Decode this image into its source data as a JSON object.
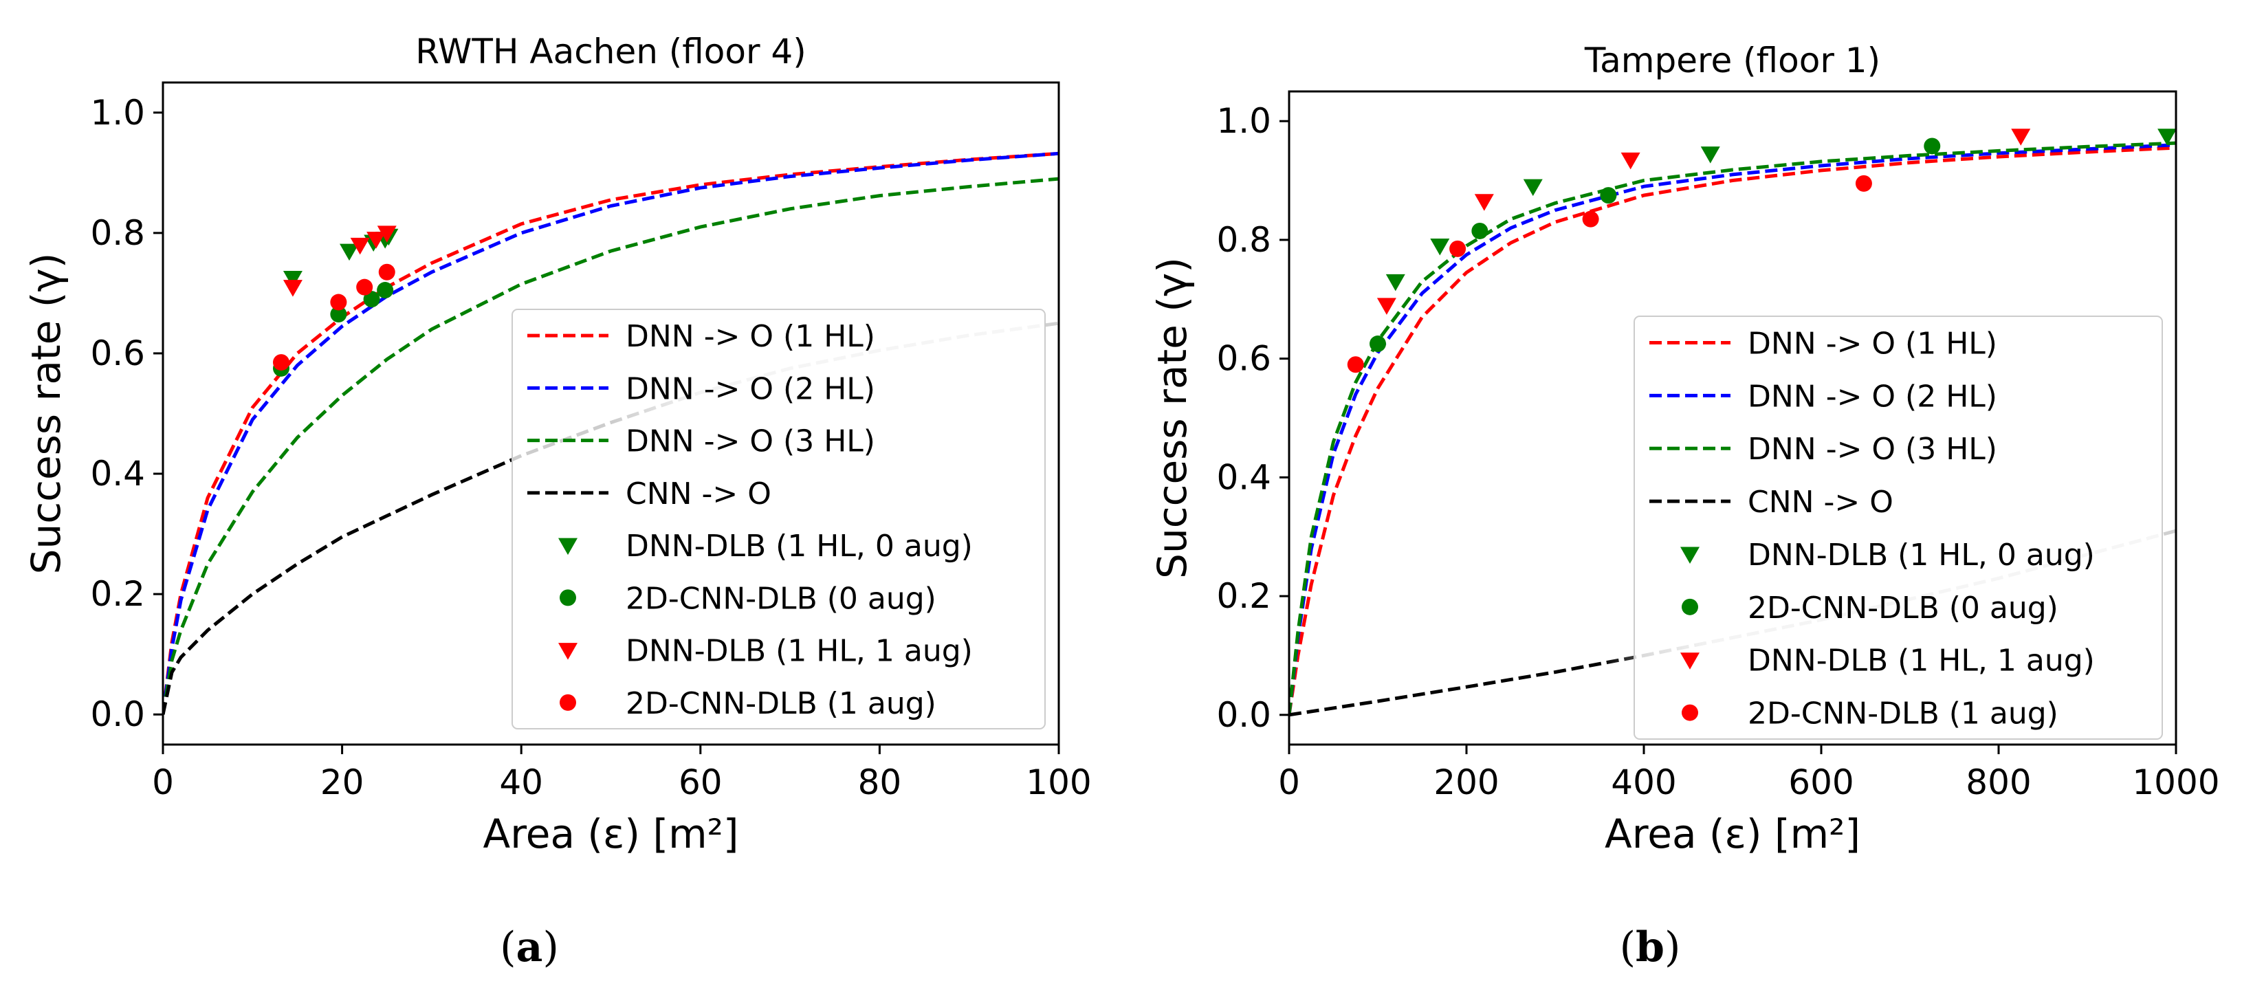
{
  "chart_data": [
    {
      "type": "line",
      "panel_label": "a",
      "title": "RWTH Aachen (floor 4)",
      "xlabel": "Area (ε) [m²]",
      "ylabel": "Success rate (γ)",
      "xlim": [
        0,
        100
      ],
      "ylim": [
        -0.05,
        1.05
      ],
      "xticks": [
        0,
        20,
        40,
        60,
        80,
        100
      ],
      "yticks": [
        0.0,
        0.2,
        0.4,
        0.6,
        0.8,
        1.0
      ],
      "xtick_labels": [
        "0",
        "20",
        "40",
        "60",
        "80",
        "100"
      ],
      "ytick_labels": [
        "0.0",
        "0.2",
        "0.4",
        "0.6",
        "0.8",
        "1.0"
      ],
      "grid": false,
      "legend_position": "center-right",
      "series": [
        {
          "name": "DNN -> O (1 HL)",
          "kind": "dashed-line",
          "color": "#ff0000",
          "x": [
            0,
            1,
            2,
            5,
            10,
            15,
            20,
            25,
            30,
            40,
            50,
            60,
            70,
            80,
            90,
            100
          ],
          "y": [
            0.0,
            0.12,
            0.2,
            0.36,
            0.51,
            0.6,
            0.66,
            0.71,
            0.75,
            0.815,
            0.855,
            0.88,
            0.897,
            0.91,
            0.922,
            0.932
          ]
        },
        {
          "name": "DNN -> O (2 HL)",
          "kind": "dashed-line",
          "color": "#0000ff",
          "x": [
            0,
            1,
            2,
            5,
            10,
            15,
            20,
            25,
            30,
            40,
            50,
            60,
            70,
            80,
            90,
            100
          ],
          "y": [
            0.0,
            0.11,
            0.19,
            0.34,
            0.49,
            0.58,
            0.645,
            0.695,
            0.735,
            0.8,
            0.845,
            0.875,
            0.894,
            0.908,
            0.921,
            0.932
          ]
        },
        {
          "name": "DNN -> O (3 HL)",
          "kind": "dashed-line",
          "color": "#008000",
          "x": [
            0,
            1,
            2,
            5,
            10,
            15,
            20,
            25,
            30,
            40,
            50,
            60,
            70,
            80,
            90,
            100
          ],
          "y": [
            0.0,
            0.09,
            0.14,
            0.25,
            0.37,
            0.46,
            0.53,
            0.59,
            0.64,
            0.715,
            0.77,
            0.81,
            0.84,
            0.862,
            0.877,
            0.89
          ]
        },
        {
          "name": "CNN -> O",
          "kind": "dashed-line",
          "color": "#000000",
          "fade_after_x": 50,
          "x": [
            0,
            1,
            2,
            5,
            10,
            15,
            20,
            25,
            30,
            40,
            50,
            60,
            70,
            80,
            90,
            100
          ],
          "y": [
            0.0,
            0.07,
            0.095,
            0.14,
            0.2,
            0.25,
            0.295,
            0.33,
            0.365,
            0.43,
            0.485,
            0.535,
            0.575,
            0.605,
            0.63,
            0.65
          ]
        },
        {
          "name": "DNN-DLB (1 HL, 0 aug)",
          "kind": "marker",
          "marker": "triangle-down",
          "color": "#008000",
          "x": [
            14.5,
            20.8,
            23.5,
            24.8,
            25.2
          ],
          "y": [
            0.725,
            0.77,
            0.785,
            0.79,
            0.795
          ]
        },
        {
          "name": "2D-CNN-DLB (0 aug)",
          "kind": "marker",
          "marker": "circle",
          "color": "#008000",
          "x": [
            13.2,
            19.6,
            23.3,
            24.8
          ],
          "y": [
            0.575,
            0.665,
            0.69,
            0.705
          ]
        },
        {
          "name": "DNN-DLB (1 HL, 1 aug)",
          "kind": "marker",
          "marker": "triangle-down",
          "color": "#ff0000",
          "x": [
            14.5,
            22.0,
            23.8,
            25.0
          ],
          "y": [
            0.71,
            0.78,
            0.79,
            0.8
          ]
        },
        {
          "name": "2D-CNN-DLB (1 aug)",
          "kind": "marker",
          "marker": "circle",
          "color": "#ff0000",
          "x": [
            13.2,
            19.6,
            22.5,
            25.0
          ],
          "y": [
            0.585,
            0.685,
            0.71,
            0.735
          ]
        }
      ]
    },
    {
      "type": "line",
      "panel_label": "b",
      "title": "Tampere (floor 1)",
      "xlabel": "Area (ε) [m²]",
      "ylabel": "Success rate (γ)",
      "xlim": [
        0,
        1000
      ],
      "ylim": [
        -0.05,
        1.05
      ],
      "xticks": [
        0,
        200,
        400,
        600,
        800,
        1000
      ],
      "yticks": [
        0.0,
        0.2,
        0.4,
        0.6,
        0.8,
        1.0
      ],
      "xtick_labels": [
        "0",
        "200",
        "400",
        "600",
        "800",
        "1000"
      ],
      "ytick_labels": [
        "0.0",
        "0.2",
        "0.4",
        "0.6",
        "0.8",
        "1.0"
      ],
      "grid": false,
      "legend_position": "center-right",
      "series": [
        {
          "name": "DNN -> O (1 HL)",
          "kind": "dashed-line",
          "color": "#ff0000",
          "x": [
            0,
            10,
            25,
            50,
            75,
            100,
            150,
            200,
            250,
            300,
            400,
            500,
            600,
            700,
            800,
            900,
            1000
          ],
          "y": [
            0.0,
            0.1,
            0.22,
            0.37,
            0.47,
            0.55,
            0.67,
            0.745,
            0.795,
            0.83,
            0.875,
            0.9,
            0.917,
            0.93,
            0.94,
            0.948,
            0.955
          ]
        },
        {
          "name": "DNN -> O (2 HL)",
          "kind": "dashed-line",
          "color": "#0000ff",
          "x": [
            0,
            10,
            25,
            50,
            75,
            100,
            150,
            200,
            250,
            300,
            400,
            500,
            600,
            700,
            800,
            900,
            1000
          ],
          "y": [
            0.0,
            0.13,
            0.28,
            0.44,
            0.54,
            0.61,
            0.71,
            0.775,
            0.82,
            0.85,
            0.89,
            0.91,
            0.925,
            0.937,
            0.946,
            0.953,
            0.96
          ]
        },
        {
          "name": "DNN -> O (3 HL)",
          "kind": "dashed-line",
          "color": "#008000",
          "x": [
            0,
            10,
            25,
            50,
            75,
            100,
            150,
            200,
            250,
            300,
            400,
            500,
            600,
            700,
            800,
            900,
            1000
          ],
          "y": [
            0.0,
            0.14,
            0.3,
            0.46,
            0.56,
            0.63,
            0.73,
            0.79,
            0.835,
            0.862,
            0.9,
            0.918,
            0.932,
            0.942,
            0.95,
            0.957,
            0.963
          ]
        },
        {
          "name": "CNN -> O",
          "kind": "dashed-line",
          "color": "#000000",
          "fade_after_x": 350,
          "x": [
            0,
            100,
            200,
            300,
            400,
            500,
            600,
            700,
            800,
            900,
            1000
          ],
          "y": [
            0.0,
            0.023,
            0.047,
            0.072,
            0.1,
            0.13,
            0.16,
            0.195,
            0.23,
            0.27,
            0.31
          ]
        },
        {
          "name": "DNN-DLB (1 HL, 0 aug)",
          "kind": "marker",
          "marker": "triangle-down",
          "color": "#008000",
          "x": [
            120,
            170,
            275,
            475,
            990
          ],
          "y": [
            0.73,
            0.79,
            0.89,
            0.945,
            0.975
          ]
        },
        {
          "name": "2D-CNN-DLB (0 aug)",
          "kind": "marker",
          "marker": "circle",
          "color": "#008000",
          "x": [
            100,
            215,
            360,
            725
          ],
          "y": [
            0.625,
            0.815,
            0.875,
            0.958
          ]
        },
        {
          "name": "DNN-DLB (1 HL, 1 aug)",
          "kind": "marker",
          "marker": "triangle-down",
          "color": "#ff0000",
          "x": [
            110,
            220,
            385,
            825
          ],
          "y": [
            0.69,
            0.865,
            0.935,
            0.975
          ]
        },
        {
          "name": "2D-CNN-DLB (1 aug)",
          "kind": "marker",
          "marker": "circle",
          "color": "#ff0000",
          "x": [
            75,
            190,
            340,
            648
          ],
          "y": [
            0.59,
            0.785,
            0.835,
            0.895
          ]
        }
      ]
    }
  ]
}
